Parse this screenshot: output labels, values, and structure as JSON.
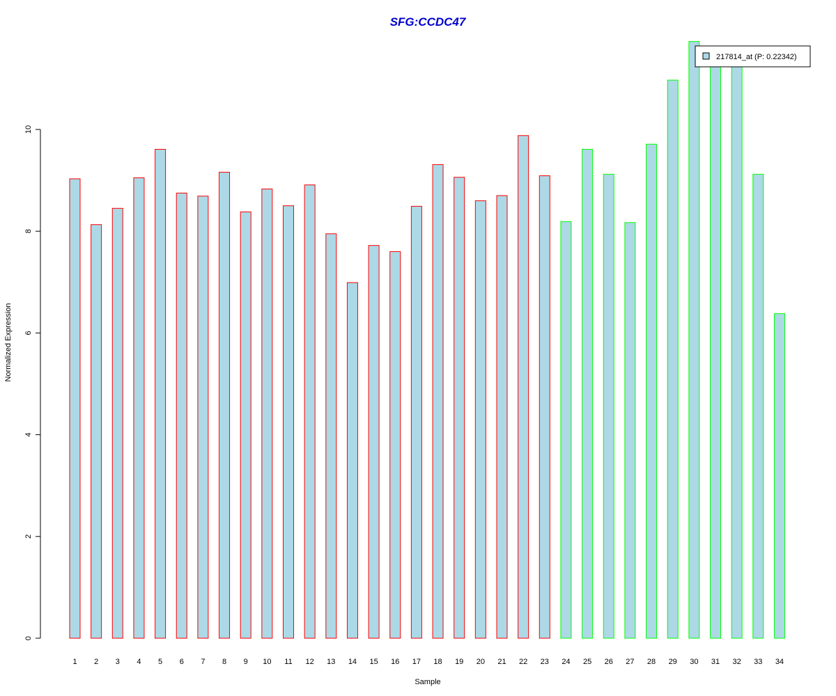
{
  "chart_data": {
    "type": "bar",
    "title": "SFG:CCDC47",
    "xlabel": "Sample",
    "ylabel": "Normalized Expression",
    "ylim": [
      0,
      12
    ],
    "yticks": [
      0,
      2,
      4,
      6,
      8,
      10
    ],
    "categories": [
      "1",
      "2",
      "3",
      "4",
      "5",
      "6",
      "7",
      "8",
      "9",
      "10",
      "11",
      "12",
      "13",
      "14",
      "15",
      "16",
      "17",
      "18",
      "19",
      "20",
      "21",
      "22",
      "23",
      "24",
      "25",
      "26",
      "27",
      "28",
      "29",
      "30",
      "31",
      "32",
      "33",
      "34"
    ],
    "series": [
      {
        "name": "217814_at (P: 0.22342)",
        "values": [
          9.03,
          8.13,
          8.45,
          9.05,
          9.61,
          8.75,
          8.69,
          9.16,
          8.38,
          8.83,
          8.5,
          8.91,
          7.95,
          6.99,
          7.72,
          7.6,
          8.49,
          9.31,
          9.06,
          8.6,
          8.7,
          9.88,
          9.09,
          8.19,
          9.61,
          9.12,
          8.17,
          9.71,
          10.97,
          11.73,
          11.31,
          11.31,
          9.12,
          6.38
        ]
      }
    ],
    "groups": [
      {
        "samples": "1-23",
        "border_color": "#ff0000"
      },
      {
        "samples": "24-34",
        "border_color": "#00ff00"
      }
    ],
    "bar_fill": "#add8e6",
    "title_color": "#0000cd",
    "legend_placement": "top-right",
    "grid": false
  }
}
